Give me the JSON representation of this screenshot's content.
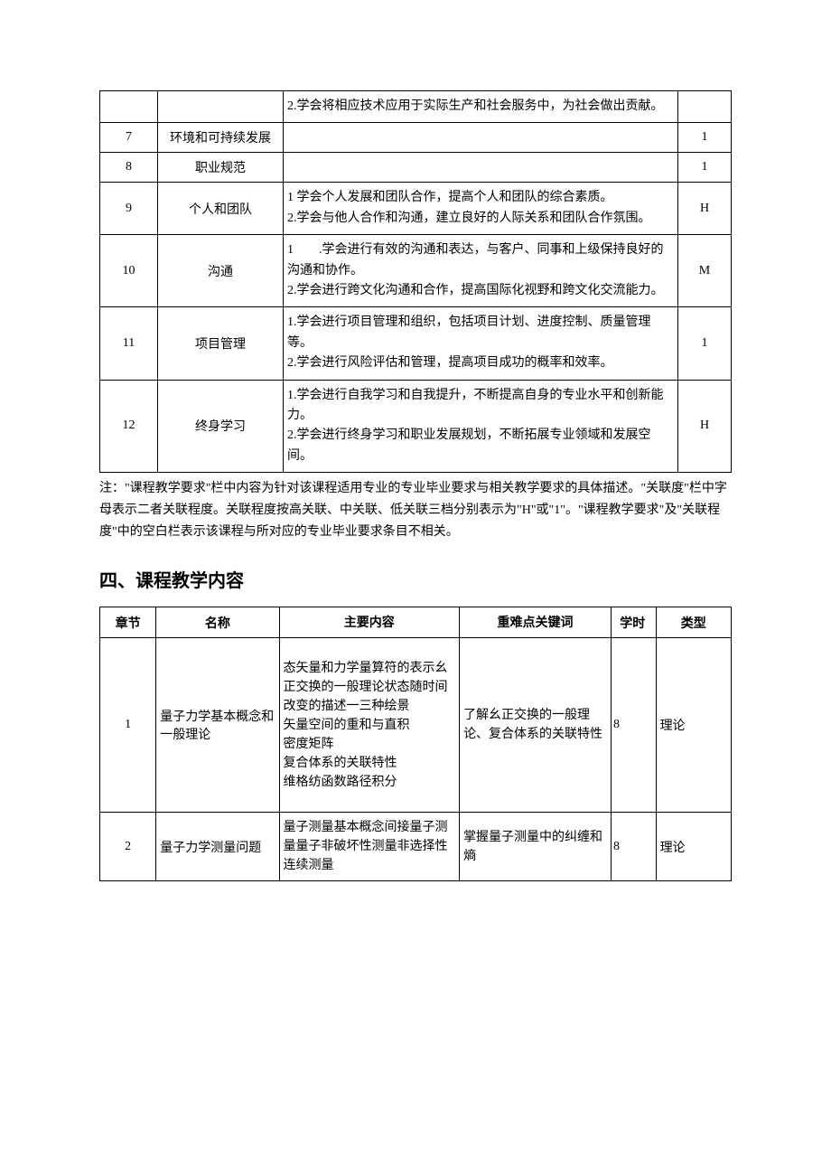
{
  "table1": {
    "rows": [
      {
        "idx": "",
        "name": "",
        "content": "2.学会将相应技术应用于实际生产和社会服务中，为社会做出贡献。",
        "rel": ""
      },
      {
        "idx": "7",
        "name": "环境和可持续发展",
        "content": "",
        "rel": "1"
      },
      {
        "idx": "8",
        "name": "职业规范",
        "content": "",
        "rel": "1"
      },
      {
        "idx": "9",
        "name": "个人和团队",
        "content": "1 学会个人发展和团队合作，提高个人和团队的综合素质。\n2.学会与他人合作和沟通，建立良好的人际关系和团队合作氛围。",
        "rel": "H"
      },
      {
        "idx": "10",
        "name": "沟通",
        "content": "1　　.学会进行有效的沟通和表达，与客户、同事和上级保持良好的沟通和协作。\n2.学会进行跨文化沟通和合作，提高国际化视野和跨文化交流能力。",
        "rel": "M"
      },
      {
        "idx": "11",
        "name": "项目管理",
        "content": "1.学会进行项目管理和组织，包括项目计划、进度控制、质量管理等。\n2.学会进行风险评估和管理，提高项目成功的概率和效率。",
        "rel": "1"
      },
      {
        "idx": "12",
        "name": "终身学习",
        "content": "1.学会进行自我学习和自我提升，不断提高自身的专业水平和创新能力。\n2.学会进行终身学习和职业发展规划，不断拓展专业领域和发展空间。",
        "rel": "H"
      }
    ]
  },
  "note": "注：\"课程教学要求\"栏中内容为针对该课程适用专业的专业毕业要求与相关教学要求的具体描述。\"关联度\"栏中字母表示二者关联程度。关联程度按高关联、中关联、低关联三档分别表示为\"H\"或\"1\"。\"课程教学要求\"及\"关联程度\"中的空白栏表示该课程与所对应的专业毕业要求条目不相关。",
  "section_heading": "四、课程教学内容",
  "table2": {
    "headers": [
      "章节",
      "名称",
      "主要内容",
      "重难点关键词",
      "学时",
      "类型"
    ],
    "rows": [
      {
        "ch": "1",
        "name": "量子力学基本概念和一般理论",
        "content": "态矢量和力学量算符的表示幺正交换的一般理论状态随时间改变的描述一三种绘景\n矢量空间的重和与直积\n密度矩阵\n复合体系的关联特性\n维格纺函数路径积分",
        "kw": "了解幺正交换的一般理论、复合体系的关联特性",
        "hours": "8",
        "type": "理论"
      },
      {
        "ch": "2",
        "name": "量子力学测量问题",
        "content": "量子测量基本概念间接量子测量量子非破坏性测量非选择性连续测量",
        "kw": "掌握量子测量中的纠缠和熵",
        "hours": "8",
        "type": "理论"
      }
    ]
  }
}
